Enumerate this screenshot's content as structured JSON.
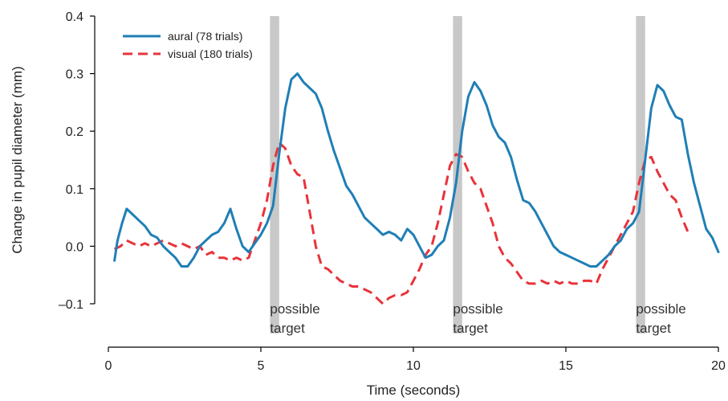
{
  "chart_data": {
    "type": "line",
    "title": "",
    "xlabel": "Time (seconds)",
    "ylabel": "Change in pupil diameter (mm)",
    "xlim": [
      0,
      20
    ],
    "ylim": [
      -0.1,
      0.4
    ],
    "x_ticks": [
      0,
      5,
      10,
      15,
      20
    ],
    "x_tick_labels": [
      "0",
      "5",
      "10",
      "15",
      "20"
    ],
    "y_ticks": [
      0.4,
      0.3,
      0.2,
      0.1,
      0.0,
      -0.1
    ],
    "y_tick_labels": [
      "0.4",
      "0.3",
      "0.2",
      "0.1",
      "0.0",
      "–0.1"
    ],
    "grid": false,
    "legend_position": "top-left",
    "series": [
      {
        "name": "aural (78 trials)",
        "color": "#1f7fb6",
        "style": "solid",
        "x": [
          0.2,
          0.3,
          0.45,
          0.6,
          0.8,
          1.0,
          1.2,
          1.4,
          1.6,
          1.8,
          2.0,
          2.2,
          2.4,
          2.6,
          2.8,
          3.0,
          3.2,
          3.4,
          3.6,
          3.8,
          4.0,
          4.2,
          4.4,
          4.6,
          4.8,
          5.0,
          5.2,
          5.4,
          5.6,
          5.8,
          6.0,
          6.2,
          6.4,
          6.6,
          6.8,
          7.0,
          7.2,
          7.4,
          7.6,
          7.8,
          8.0,
          8.2,
          8.4,
          8.6,
          8.8,
          9.0,
          9.2,
          9.4,
          9.6,
          9.8,
          10.0,
          10.2,
          10.4,
          10.6,
          10.8,
          11.0,
          11.2,
          11.4,
          11.6,
          11.8,
          12.0,
          12.2,
          12.4,
          12.6,
          12.8,
          13.0,
          13.2,
          13.4,
          13.6,
          13.8,
          14.0,
          14.2,
          14.4,
          14.6,
          14.8,
          15.0,
          15.2,
          15.4,
          15.6,
          15.8,
          16.0,
          16.2,
          16.4,
          16.6,
          16.8,
          17.0,
          17.2,
          17.4,
          17.6,
          17.8,
          18.0,
          18.2,
          18.4,
          18.6,
          18.8,
          19.0,
          19.2,
          19.4,
          19.6,
          19.8,
          20.0
        ],
        "y": [
          -0.025,
          0.01,
          0.04,
          0.065,
          0.055,
          0.045,
          0.035,
          0.02,
          0.015,
          0.0,
          -0.01,
          -0.02,
          -0.035,
          -0.035,
          -0.02,
          0.0,
          0.01,
          0.02,
          0.025,
          0.04,
          0.065,
          0.03,
          0.0,
          -0.01,
          0.005,
          0.02,
          0.04,
          0.07,
          0.16,
          0.24,
          0.29,
          0.3,
          0.285,
          0.275,
          0.265,
          0.24,
          0.2,
          0.165,
          0.135,
          0.105,
          0.09,
          0.07,
          0.05,
          0.04,
          0.03,
          0.02,
          0.025,
          0.02,
          0.01,
          0.03,
          0.02,
          0.0,
          -0.02,
          -0.015,
          0.0,
          0.01,
          0.05,
          0.11,
          0.2,
          0.26,
          0.285,
          0.27,
          0.245,
          0.21,
          0.19,
          0.18,
          0.155,
          0.115,
          0.08,
          0.075,
          0.06,
          0.04,
          0.02,
          0.0,
          -0.01,
          -0.015,
          -0.02,
          -0.025,
          -0.03,
          -0.035,
          -0.035,
          -0.025,
          -0.015,
          0.0,
          0.01,
          0.03,
          0.04,
          0.06,
          0.15,
          0.24,
          0.28,
          0.27,
          0.245,
          0.225,
          0.22,
          0.16,
          0.11,
          0.07,
          0.03,
          0.015,
          -0.01
        ]
      },
      {
        "name": "visual (180 trials)",
        "color": "#e8333a",
        "style": "dashed",
        "x": [
          0.2,
          0.4,
          0.6,
          0.8,
          1.0,
          1.2,
          1.4,
          1.6,
          1.8,
          2.0,
          2.2,
          2.4,
          2.6,
          2.8,
          3.0,
          3.2,
          3.4,
          3.6,
          3.8,
          4.0,
          4.2,
          4.4,
          4.6,
          4.8,
          5.0,
          5.2,
          5.4,
          5.6,
          5.8,
          6.0,
          6.2,
          6.4,
          6.6,
          6.8,
          7.0,
          7.2,
          7.4,
          7.6,
          7.8,
          8.0,
          8.2,
          8.4,
          8.6,
          8.8,
          9.0,
          9.2,
          9.4,
          9.6,
          9.8,
          10.0,
          10.2,
          10.4,
          10.6,
          10.8,
          11.0,
          11.2,
          11.4,
          11.6,
          11.8,
          12.0,
          12.2,
          12.4,
          12.6,
          12.8,
          13.0,
          13.2,
          13.4,
          13.6,
          13.8,
          14.0,
          14.2,
          14.4,
          14.6,
          14.8,
          15.0,
          15.2,
          15.4,
          15.6,
          15.8,
          16.0,
          16.2,
          16.4,
          16.6,
          16.8,
          17.0,
          17.2,
          17.4,
          17.6,
          17.8,
          18.0,
          18.2,
          18.4,
          18.6,
          18.8,
          19.0
        ],
        "y": [
          -0.005,
          0.0,
          0.01,
          0.005,
          0.0,
          0.005,
          0.0,
          0.005,
          0.01,
          0.005,
          0.0,
          0.005,
          0.0,
          -0.005,
          0.0,
          -0.015,
          -0.01,
          -0.02,
          -0.02,
          -0.025,
          -0.02,
          -0.025,
          -0.02,
          0.01,
          0.04,
          0.08,
          0.14,
          0.18,
          0.17,
          0.14,
          0.125,
          0.12,
          0.06,
          0.0,
          -0.035,
          -0.04,
          -0.05,
          -0.06,
          -0.065,
          -0.07,
          -0.07,
          -0.075,
          -0.08,
          -0.09,
          -0.1,
          -0.09,
          -0.085,
          -0.085,
          -0.08,
          -0.06,
          -0.04,
          -0.015,
          0.0,
          0.04,
          0.09,
          0.14,
          0.16,
          0.155,
          0.13,
          0.11,
          0.1,
          0.07,
          0.04,
          0.0,
          -0.02,
          -0.03,
          -0.045,
          -0.06,
          -0.065,
          -0.065,
          -0.06,
          -0.065,
          -0.06,
          -0.065,
          -0.06,
          -0.065,
          -0.065,
          -0.06,
          -0.06,
          -0.065,
          -0.04,
          -0.02,
          0.0,
          0.02,
          0.04,
          0.06,
          0.11,
          0.15,
          0.155,
          0.13,
          0.11,
          0.09,
          0.08,
          0.05,
          0.025
        ]
      }
    ],
    "shaded_regions": [
      {
        "x0": 5.3,
        "x1": 5.6,
        "color": "#c8c8c8"
      },
      {
        "x0": 11.3,
        "x1": 11.6,
        "color": "#c8c8c8"
      },
      {
        "x0": 17.3,
        "x1": 17.6,
        "color": "#c8c8c8"
      }
    ],
    "annotations": [
      {
        "text_line1": "possible",
        "text_line2": "target",
        "x": 5.3
      },
      {
        "text_line1": "possible",
        "text_line2": "target",
        "x": 11.3
      },
      {
        "text_line1": "possible",
        "text_line2": "target",
        "x": 17.3
      }
    ]
  }
}
